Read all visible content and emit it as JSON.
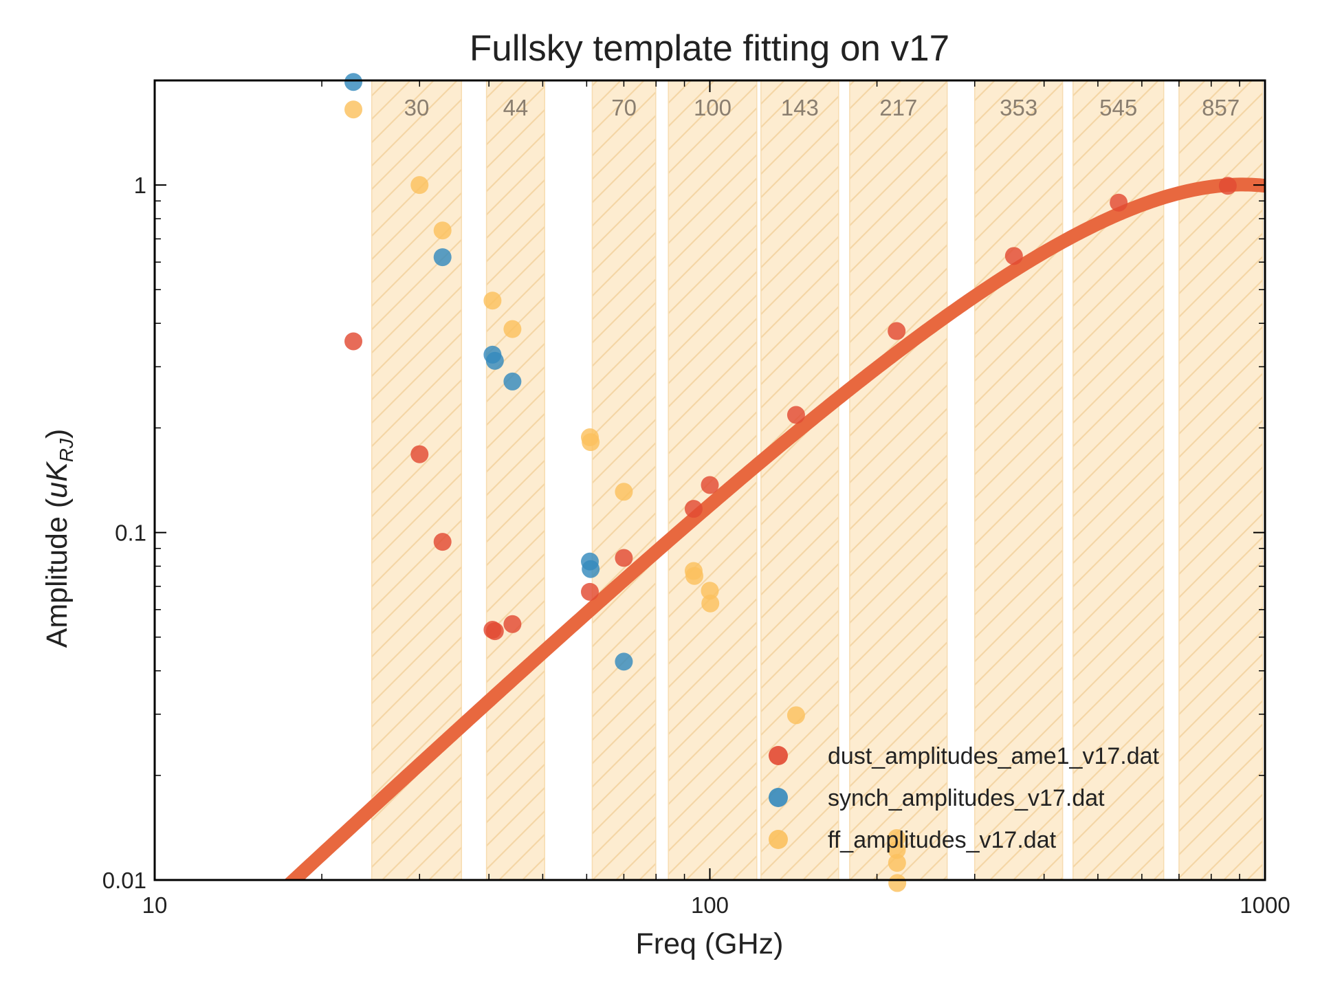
{
  "chart_data": {
    "type": "scatter",
    "title": "Fullsky template fitting on v17",
    "xlabel": "Freq (GHz)",
    "ylabel_main": "Amplitude (",
    "ylabel_italic": "uK",
    "ylabel_sub": "RJ",
    "ylabel_close": ")",
    "x_scale": "log",
    "y_scale": "log",
    "xlim": [
      10,
      1000
    ],
    "ylim": [
      0.01,
      2.0
    ],
    "x_ticks": [
      {
        "value": 10,
        "label": "10"
      },
      {
        "value": 100,
        "label": "100"
      },
      {
        "value": 1000,
        "label": "1000"
      }
    ],
    "y_ticks": [
      {
        "value": 0.01,
        "label": "0.01"
      },
      {
        "value": 0.1,
        "label": "0.1"
      },
      {
        "value": 1,
        "label": "1"
      }
    ],
    "grid": false,
    "legend_position": "lower-right",
    "bands": [
      {
        "label": "30",
        "range": [
          24.6,
          35.7
        ]
      },
      {
        "label": "44",
        "range": [
          39.6,
          50.4
        ]
      },
      {
        "label": "70",
        "range": [
          61.4,
          79.9
        ]
      },
      {
        "label": "100",
        "range": [
          84.2,
          121.5
        ]
      },
      {
        "label": "143",
        "range": [
          123.6,
          170.6
        ]
      },
      {
        "label": "217",
        "range": [
          178.6,
          267.6
        ]
      },
      {
        "label": "353",
        "range": [
          300.0,
          432.0
        ]
      },
      {
        "label": "545",
        "range": [
          451.0,
          657.0
        ]
      },
      {
        "label": "857",
        "range": [
          700.0,
          990.0
        ]
      }
    ],
    "band_color": "#fdecd0",
    "series": [
      {
        "name": "dust_amplitudes_ame1_v17.dat",
        "color": "#e24a33",
        "points": [
          {
            "x": 22.8,
            "y": 0.355
          },
          {
            "x": 30.0,
            "y": 0.168
          },
          {
            "x": 33.0,
            "y": 0.094
          },
          {
            "x": 40.6,
            "y": 0.0525
          },
          {
            "x": 41.0,
            "y": 0.052
          },
          {
            "x": 44.1,
            "y": 0.0545
          },
          {
            "x": 60.8,
            "y": 0.0675
          },
          {
            "x": 70.0,
            "y": 0.0845
          },
          {
            "x": 93.5,
            "y": 0.117
          },
          {
            "x": 100.0,
            "y": 0.137
          },
          {
            "x": 143.0,
            "y": 0.218
          },
          {
            "x": 217.0,
            "y": 0.38
          },
          {
            "x": 353.0,
            "y": 0.625
          },
          {
            "x": 545.0,
            "y": 0.89
          },
          {
            "x": 857.0,
            "y": 0.995
          }
        ]
      },
      {
        "name": "synch_amplitudes_v17.dat",
        "color": "#348abd",
        "points": [
          {
            "x": 22.8,
            "y": 1.98
          },
          {
            "x": 33.0,
            "y": 0.62
          },
          {
            "x": 40.6,
            "y": 0.325
          },
          {
            "x": 41.0,
            "y": 0.312
          },
          {
            "x": 44.1,
            "y": 0.272
          },
          {
            "x": 60.8,
            "y": 0.0825
          },
          {
            "x": 61.0,
            "y": 0.0785
          },
          {
            "x": 70.0,
            "y": 0.0425
          }
        ]
      },
      {
        "name": "ff_amplitudes_v17.dat",
        "color": "#fbc15e",
        "points": [
          {
            "x": 22.8,
            "y": 1.65
          },
          {
            "x": 30.0,
            "y": 1.0
          },
          {
            "x": 33.0,
            "y": 0.74
          },
          {
            "x": 40.6,
            "y": 0.465
          },
          {
            "x": 44.1,
            "y": 0.385
          },
          {
            "x": 60.8,
            "y": 0.188
          },
          {
            "x": 61.0,
            "y": 0.182
          },
          {
            "x": 70.0,
            "y": 0.131
          },
          {
            "x": 93.5,
            "y": 0.0775
          },
          {
            "x": 93.8,
            "y": 0.075
          },
          {
            "x": 100.0,
            "y": 0.068
          },
          {
            "x": 100.2,
            "y": 0.0625
          },
          {
            "x": 143.0,
            "y": 0.0298
          },
          {
            "x": 217.0,
            "y": 0.0132
          },
          {
            "x": 217.2,
            "y": 0.0122
          },
          {
            "x": 217.4,
            "y": 0.0112
          },
          {
            "x": 217.6,
            "y": 0.0098
          }
        ]
      }
    ],
    "fit_curve": {
      "color": "#e8683f",
      "model": "modified blackbody",
      "beta": 1.5,
      "temperature_K": 19.6,
      "normalization": {
        "x": 857,
        "y": 1.0
      }
    }
  }
}
